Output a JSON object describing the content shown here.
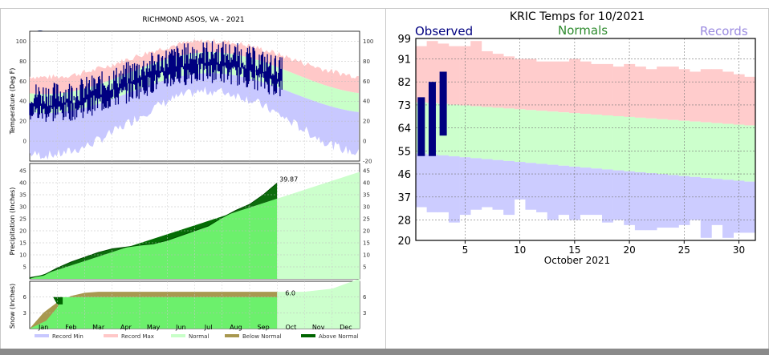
{
  "chart_data": [
    {
      "type": "line",
      "title": "RICHMOND    ASOS, VA - 2021",
      "months": [
        "Jan",
        "Feb",
        "Mar",
        "Apr",
        "May",
        "Jun",
        "Jul",
        "Aug",
        "Sep",
        "Oct",
        "Nov",
        "Dec"
      ],
      "legend": [
        "Record Min",
        "Record Max",
        "Normal",
        "Below Normal",
        "Above Normal"
      ],
      "colors": {
        "record_min": "#c8c8ff",
        "record_max": "#ffc8c8",
        "normal": "#c8ffc8",
        "observed": "#000080",
        "precip_fill": "#80ff80",
        "precip_obs": "#006400",
        "below_normal": "#a89850",
        "above_normal": "#006400"
      },
      "temperature": {
        "ylabel": "Temperature (Deg F)",
        "ylim": [
          -20,
          110
        ],
        "left_ticks": [
          0,
          20,
          40,
          60,
          80,
          100
        ],
        "right_ticks": [
          -20,
          0,
          20,
          40,
          60,
          80,
          100
        ],
        "observed_months": 9
      },
      "precipitation": {
        "ylabel": "Precipitation (Inches)",
        "ylim": [
          0,
          48
        ],
        "ticks": [
          5,
          10,
          15,
          20,
          25,
          30,
          35,
          40,
          45
        ],
        "ytd_label": "39.87",
        "observed_x": [
          0,
          0.5,
          1,
          1.5,
          2,
          2.5,
          3,
          3.5,
          4,
          4.5,
          5,
          5.5,
          6,
          6.5,
          7,
          7.5,
          8,
          8.5,
          9
        ],
        "observed_y": [
          0.5,
          1.5,
          4.5,
          7,
          9,
          11,
          12.5,
          13.2,
          14,
          14.6,
          16,
          18,
          20,
          22,
          25.5,
          28.5,
          31,
          35,
          39.87
        ],
        "normal_x": [
          0,
          12
        ],
        "normal_y": [
          0,
          44.5
        ]
      },
      "snow": {
        "ylabel": "Snow (Inches)",
        "ylim": [
          0,
          9
        ],
        "ticks": [
          3,
          6
        ],
        "ytd_label": "6.0",
        "observed_x": [
          0,
          0.6,
          1.0,
          1.2,
          9
        ],
        "observed_y": [
          0,
          1.5,
          4,
          6.0,
          6.0
        ],
        "normal_x": [
          0,
          0.5,
          1,
          1.5,
          2,
          2.5,
          3,
          9,
          10,
          11,
          12
        ],
        "normal_y": [
          0,
          3,
          5,
          6.2,
          6.8,
          7.0,
          7.0,
          7.0,
          7.0,
          7.6,
          9.5
        ]
      }
    },
    {
      "type": "bar",
      "title": "KRIC Temps for 10/2021",
      "xlabel": "October 2021",
      "legend": [
        "Observed",
        "Normals",
        "Records"
      ],
      "legend_colors": [
        "#000080",
        "#2e8b2e",
        "#9a8ae0"
      ],
      "ylim": [
        20,
        99
      ],
      "xlim": [
        0.5,
        31.5
      ],
      "y_ticks": [
        20,
        28,
        37,
        46,
        55,
        64,
        73,
        82,
        91,
        99
      ],
      "x_ticks": [
        5,
        10,
        15,
        20,
        25,
        30
      ],
      "observed": [
        {
          "day": 1,
          "low": 53,
          "high": 76
        },
        {
          "day": 2,
          "low": 53,
          "high": 82
        },
        {
          "day": 3,
          "low": 61,
          "high": 86
        }
      ],
      "normal_high_start": 74,
      "normal_high_end": 65,
      "normal_low_start": 54,
      "normal_low_end": 43,
      "record_high": [
        96,
        98,
        97,
        96,
        96,
        98,
        94,
        93,
        92,
        91,
        91,
        90,
        90,
        90,
        91,
        90,
        89,
        89,
        88,
        89,
        88,
        87,
        88,
        88,
        87,
        86,
        87,
        87,
        86,
        85,
        84
      ],
      "record_low": [
        33,
        31,
        31,
        27,
        30,
        32,
        33,
        32,
        30,
        36,
        32,
        31,
        28,
        30,
        28,
        30,
        30,
        27,
        28,
        26,
        24,
        24,
        25,
        25,
        26,
        28,
        21,
        26,
        21,
        23,
        23
      ]
    }
  ]
}
